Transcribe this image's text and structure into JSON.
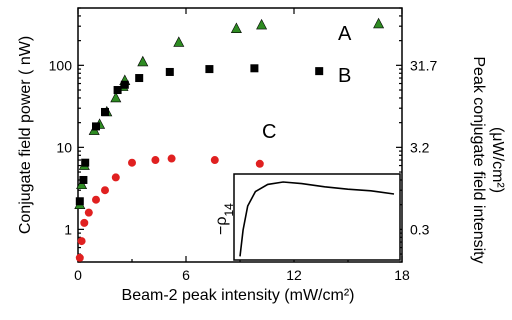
{
  "chart_data": {
    "type": "scatter",
    "x_axis": {
      "label": "Beam-2 peak intensity (mW/cm²)",
      "range": [
        0,
        18
      ],
      "ticks": [
        0,
        6,
        12,
        18
      ]
    },
    "y_axis_left": {
      "label": "Conjugate field power ( nW)",
      "scale": "log",
      "range": [
        0.4,
        500
      ],
      "ticks": [
        1,
        10,
        100
      ],
      "tick_labels": [
        "1",
        "10",
        "100"
      ]
    },
    "y_axis_right": {
      "label_line1": "Peak conjugate field intensity",
      "label_line2": "(μW/cm²)",
      "ticks_left_units": [
        1,
        10,
        100
      ],
      "tick_labels": [
        "0.3",
        "3.2",
        "31.7"
      ]
    },
    "series": [
      {
        "name": "A",
        "marker": "triangle",
        "color": "#2e8b22",
        "points": [
          [
            0.1,
            2.0
          ],
          [
            0.2,
            3.5
          ],
          [
            0.35,
            6.0
          ],
          [
            0.9,
            16
          ],
          [
            1.2,
            19
          ],
          [
            1.6,
            27
          ],
          [
            2.1,
            40
          ],
          [
            2.5,
            55
          ],
          [
            2.6,
            65
          ],
          [
            3.6,
            110
          ],
          [
            5.6,
            190
          ],
          [
            8.8,
            280
          ],
          [
            10.2,
            310
          ],
          [
            16.7,
            320
          ]
        ]
      },
      {
        "name": "B",
        "marker": "square",
        "color": "#000000",
        "points": [
          [
            0.1,
            2.2
          ],
          [
            0.3,
            4.0
          ],
          [
            0.4,
            6.5
          ],
          [
            1.0,
            18
          ],
          [
            1.5,
            27
          ],
          [
            2.2,
            50
          ],
          [
            2.6,
            58
          ],
          [
            3.4,
            70
          ],
          [
            5.1,
            83
          ],
          [
            7.3,
            90
          ],
          [
            9.8,
            92
          ],
          [
            13.4,
            85
          ]
        ]
      },
      {
        "name": "C",
        "marker": "circle",
        "color": "#e02020",
        "points": [
          [
            0.1,
            0.45
          ],
          [
            0.2,
            0.72
          ],
          [
            0.35,
            1.2
          ],
          [
            0.6,
            1.6
          ],
          [
            1.0,
            2.3
          ],
          [
            1.5,
            3.0
          ],
          [
            2.1,
            4.3
          ],
          [
            3.0,
            6.5
          ],
          [
            4.3,
            7.0
          ],
          [
            5.2,
            7.3
          ],
          [
            7.6,
            7.0
          ],
          [
            10.1,
            6.3
          ]
        ]
      }
    ],
    "curve_labels": [
      "A",
      "B",
      "C"
    ],
    "inset": {
      "ylabel": "−ρ",
      "ylabel_subscript": "14",
      "curve": [
        [
          0,
          0.02
        ],
        [
          0.02,
          0.35
        ],
        [
          0.05,
          0.65
        ],
        [
          0.1,
          0.83
        ],
        [
          0.18,
          0.92
        ],
        [
          0.28,
          0.95
        ],
        [
          0.4,
          0.93
        ],
        [
          0.55,
          0.89
        ],
        [
          0.7,
          0.86
        ],
        [
          0.85,
          0.84
        ],
        [
          1.0,
          0.8
        ]
      ]
    }
  }
}
